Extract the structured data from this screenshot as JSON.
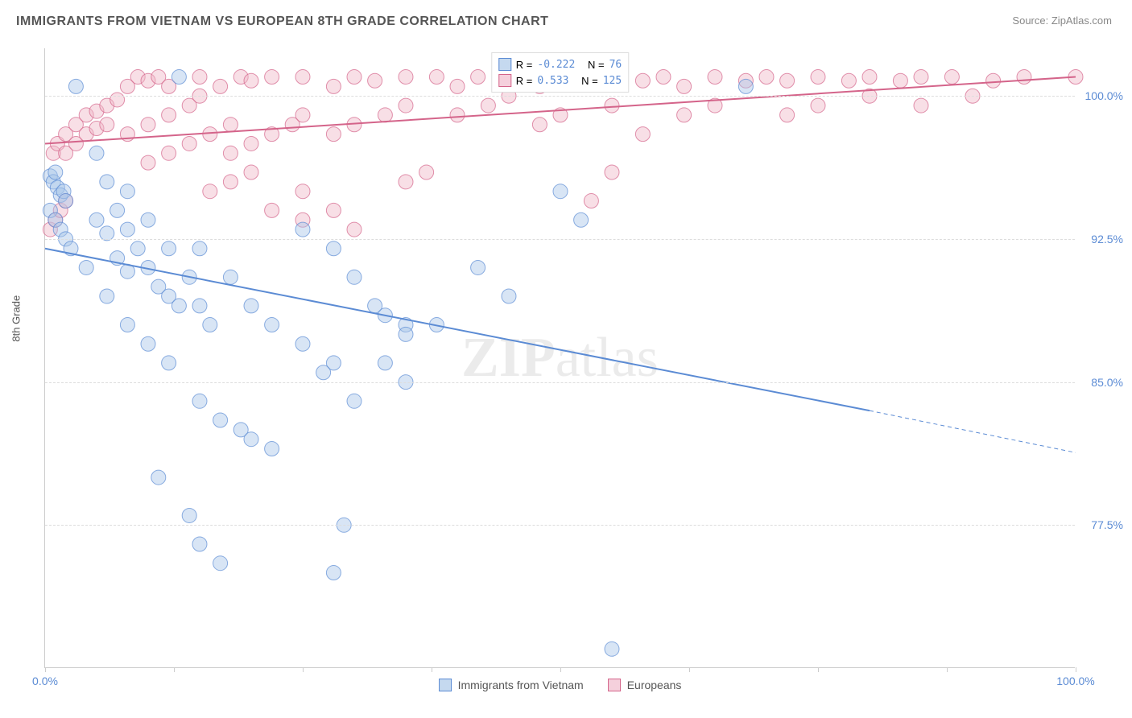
{
  "title": "IMMIGRANTS FROM VIETNAM VS EUROPEAN 8TH GRADE CORRELATION CHART",
  "source_label": "Source:",
  "source_name": "ZipAtlas.com",
  "watermark": "ZIPatlas",
  "y_axis_label": "8th Grade",
  "chart": {
    "type": "scatter",
    "background_color": "#ffffff",
    "grid_color": "#dddddd",
    "border_color": "#cccccc",
    "xlim": [
      0,
      100
    ],
    "ylim": [
      70,
      102.5
    ],
    "x_ticks": [
      0,
      12.5,
      25,
      37.5,
      50,
      62.5,
      75,
      87.5,
      100
    ],
    "x_tick_labels": {
      "0": "0.0%",
      "100": "100.0%"
    },
    "y_ticks": [
      77.5,
      85.0,
      92.5,
      100.0
    ],
    "y_tick_labels": [
      "77.5%",
      "85.0%",
      "92.5%",
      "100.0%"
    ],
    "marker_radius": 9,
    "marker_opacity": 0.45,
    "line_width": 2,
    "label_fontsize": 13,
    "tick_fontsize": 14,
    "tick_color": "#5b8bd4"
  },
  "series": [
    {
      "name": "Immigrants from Vietnam",
      "color_fill": "#a8c5e8",
      "color_stroke": "#5b8bd4",
      "legend_sq_fill": "#c5d9ef",
      "legend_sq_border": "#5b8bd4",
      "R_label": "R =",
      "R_value": "-0.222",
      "N_label": "N =",
      "N_value": "76",
      "trend": {
        "x1": 0,
        "y1": 92.0,
        "x2": 80,
        "y2": 83.5,
        "extrap_x2": 100,
        "extrap_y2": 81.3
      },
      "points": [
        [
          0.5,
          95.8
        ],
        [
          0.8,
          95.5
        ],
        [
          1.0,
          96.0
        ],
        [
          1.2,
          95.2
        ],
        [
          1.5,
          94.8
        ],
        [
          1.8,
          95.0
        ],
        [
          2.0,
          94.5
        ],
        [
          0.5,
          94.0
        ],
        [
          1.0,
          93.5
        ],
        [
          1.5,
          93.0
        ],
        [
          2.0,
          92.5
        ],
        [
          2.5,
          92.0
        ],
        [
          5,
          93.5
        ],
        [
          6,
          92.8
        ],
        [
          7,
          91.5
        ],
        [
          8,
          90.8
        ],
        [
          5,
          97.0
        ],
        [
          6,
          95.5
        ],
        [
          7,
          94.0
        ],
        [
          8,
          93.0
        ],
        [
          9,
          92.0
        ],
        [
          10,
          91.0
        ],
        [
          11,
          90.0
        ],
        [
          12,
          89.5
        ],
        [
          13,
          89.0
        ],
        [
          8,
          95.0
        ],
        [
          10,
          93.5
        ],
        [
          12,
          92.0
        ],
        [
          14,
          90.5
        ],
        [
          15,
          89.0
        ],
        [
          16,
          88.0
        ],
        [
          4,
          91.0
        ],
        [
          6,
          89.5
        ],
        [
          8,
          88.0
        ],
        [
          10,
          87.0
        ],
        [
          12,
          86.0
        ],
        [
          15,
          92.0
        ],
        [
          18,
          90.5
        ],
        [
          20,
          89.0
        ],
        [
          22,
          88.0
        ],
        [
          25,
          87.0
        ],
        [
          28,
          86.0
        ],
        [
          15,
          84.0
        ],
        [
          17,
          83.0
        ],
        [
          19,
          82.5
        ],
        [
          20,
          82.0
        ],
        [
          22,
          81.5
        ],
        [
          11,
          80.0
        ],
        [
          14,
          78.0
        ],
        [
          15,
          76.5
        ],
        [
          17,
          75.5
        ],
        [
          25,
          93.0
        ],
        [
          28,
          92.0
        ],
        [
          30,
          90.5
        ],
        [
          32,
          89.0
        ],
        [
          35,
          88.0
        ],
        [
          27,
          85.5
        ],
        [
          30,
          84.0
        ],
        [
          33,
          86.0
        ],
        [
          35,
          85.0
        ],
        [
          29,
          77.5
        ],
        [
          28,
          75.0
        ],
        [
          33,
          88.5
        ],
        [
          35,
          87.5
        ],
        [
          38,
          88.0
        ],
        [
          42,
          91.0
        ],
        [
          45,
          89.5
        ],
        [
          50,
          95.0
        ],
        [
          52,
          93.5
        ],
        [
          68,
          100.5
        ],
        [
          55,
          71.0
        ],
        [
          13,
          101.0
        ],
        [
          3,
          100.5
        ]
      ]
    },
    {
      "name": "Europeans",
      "color_fill": "#f0b8c8",
      "color_stroke": "#d4648a",
      "legend_sq_fill": "#f5d0dc",
      "legend_sq_border": "#d4648a",
      "R_label": "R =",
      "R_value": "0.533",
      "N_label": "N =",
      "N_value": "125",
      "trend": {
        "x1": 0,
        "y1": 97.5,
        "x2": 100,
        "y2": 101.0
      },
      "points": [
        [
          0.5,
          93.0
        ],
        [
          1,
          93.5
        ],
        [
          1.5,
          94.0
        ],
        [
          2,
          94.5
        ],
        [
          0.8,
          97.0
        ],
        [
          1.2,
          97.5
        ],
        [
          2,
          98.0
        ],
        [
          3,
          98.5
        ],
        [
          4,
          99.0
        ],
        [
          5,
          99.2
        ],
        [
          6,
          99.5
        ],
        [
          7,
          99.8
        ],
        [
          2,
          97.0
        ],
        [
          3,
          97.5
        ],
        [
          4,
          98.0
        ],
        [
          5,
          98.3
        ],
        [
          6,
          98.5
        ],
        [
          8,
          100.5
        ],
        [
          9,
          101.0
        ],
        [
          10,
          100.8
        ],
        [
          11,
          101.0
        ],
        [
          12,
          100.5
        ],
        [
          8,
          98.0
        ],
        [
          10,
          98.5
        ],
        [
          12,
          99.0
        ],
        [
          14,
          99.5
        ],
        [
          15,
          100.0
        ],
        [
          10,
          96.5
        ],
        [
          12,
          97.0
        ],
        [
          14,
          97.5
        ],
        [
          16,
          98.0
        ],
        [
          18,
          98.5
        ],
        [
          15,
          101.0
        ],
        [
          17,
          100.5
        ],
        [
          19,
          101.0
        ],
        [
          20,
          100.8
        ],
        [
          22,
          101.0
        ],
        [
          18,
          97.0
        ],
        [
          20,
          97.5
        ],
        [
          22,
          98.0
        ],
        [
          24,
          98.5
        ],
        [
          25,
          99.0
        ],
        [
          16,
          95.0
        ],
        [
          18,
          95.5
        ],
        [
          20,
          96.0
        ],
        [
          22,
          94.0
        ],
        [
          25,
          95.0
        ],
        [
          25,
          101.0
        ],
        [
          28,
          100.5
        ],
        [
          30,
          101.0
        ],
        [
          32,
          100.8
        ],
        [
          35,
          101.0
        ],
        [
          28,
          98.0
        ],
        [
          30,
          98.5
        ],
        [
          33,
          99.0
        ],
        [
          35,
          99.5
        ],
        [
          25,
          93.5
        ],
        [
          28,
          94.0
        ],
        [
          30,
          93.0
        ],
        [
          35,
          95.5
        ],
        [
          37,
          96.0
        ],
        [
          38,
          101.0
        ],
        [
          40,
          100.5
        ],
        [
          42,
          101.0
        ],
        [
          40,
          99.0
        ],
        [
          43,
          99.5
        ],
        [
          45,
          100.0
        ],
        [
          45,
          101.0
        ],
        [
          48,
          100.5
        ],
        [
          50,
          101.0
        ],
        [
          52,
          100.8
        ],
        [
          55,
          101.0
        ],
        [
          58,
          100.8
        ],
        [
          60,
          101.0
        ],
        [
          48,
          98.5
        ],
        [
          50,
          99.0
        ],
        [
          55,
          99.5
        ],
        [
          55,
          96.0
        ],
        [
          53,
          94.5
        ],
        [
          62,
          100.5
        ],
        [
          65,
          101.0
        ],
        [
          68,
          100.8
        ],
        [
          70,
          101.0
        ],
        [
          72,
          100.8
        ],
        [
          58,
          98.0
        ],
        [
          62,
          99.0
        ],
        [
          65,
          99.5
        ],
        [
          75,
          101.0
        ],
        [
          78,
          100.8
        ],
        [
          80,
          101.0
        ],
        [
          83,
          100.8
        ],
        [
          85,
          101.0
        ],
        [
          72,
          99.0
        ],
        [
          75,
          99.5
        ],
        [
          80,
          100.0
        ],
        [
          88,
          101.0
        ],
        [
          92,
          100.8
        ],
        [
          95,
          101.0
        ],
        [
          100,
          101.0
        ],
        [
          85,
          99.5
        ],
        [
          90,
          100.0
        ]
      ]
    }
  ]
}
